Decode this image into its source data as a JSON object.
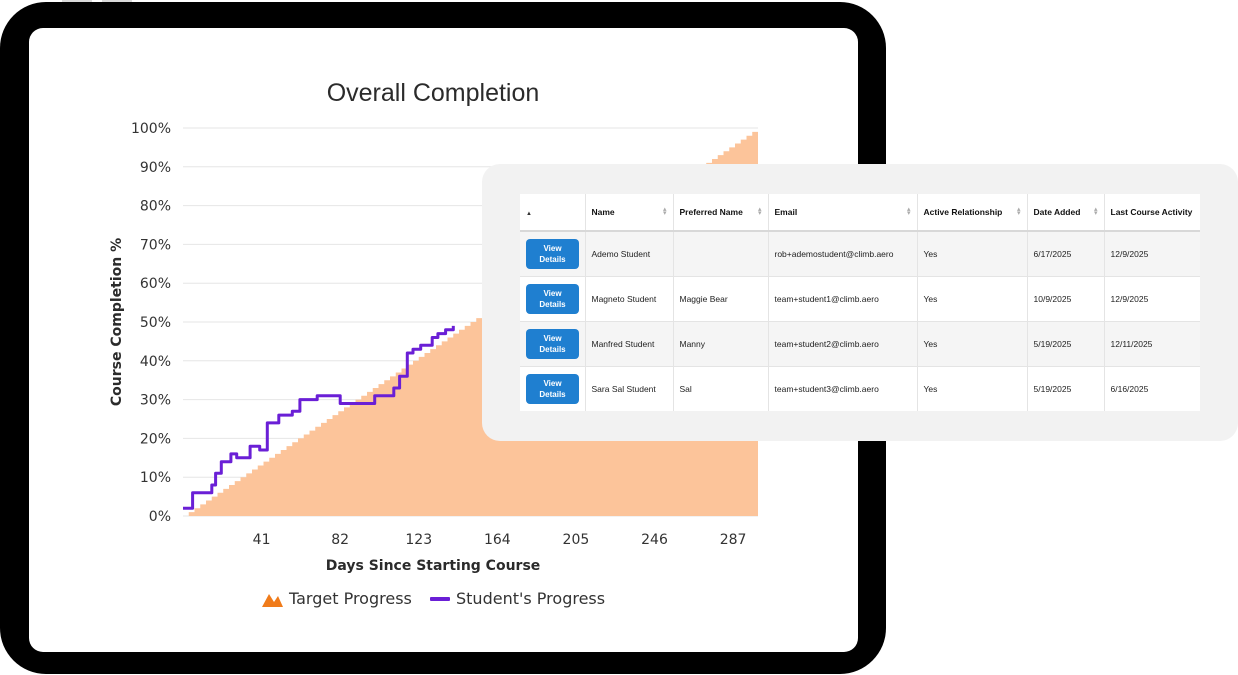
{
  "chart_data": {
    "type": "area",
    "title": "Overall Completion",
    "xlabel": "Days Since Starting Course",
    "ylabel": "Course Completion %",
    "xlim": [
      0,
      300
    ],
    "ylim": [
      0,
      100
    ],
    "x_ticks": [
      41,
      82,
      123,
      164,
      205,
      246,
      287
    ],
    "y_ticks": [
      "0%",
      "10%",
      "20%",
      "30%",
      "40%",
      "50%",
      "60%",
      "70%",
      "80%",
      "90%",
      "100%"
    ],
    "grid": true,
    "legend_position": "bottom",
    "series": [
      {
        "name": "Target Progress",
        "type": "area",
        "color": "#fcc49a",
        "x": [
          0,
          300
        ],
        "y": [
          0,
          100
        ]
      },
      {
        "name": "Student's Progress",
        "type": "line",
        "color": "#6a1fd6",
        "x": [
          0,
          5,
          5,
          15,
          15,
          17,
          17,
          20,
          20,
          25,
          25,
          28,
          28,
          35,
          35,
          40,
          40,
          44,
          44,
          50,
          50,
          53,
          53,
          57,
          57,
          61,
          61,
          70,
          70,
          72,
          72,
          78,
          78,
          82,
          82,
          100,
          100,
          110,
          110,
          113,
          113,
          117,
          117,
          120,
          120,
          124,
          124,
          130,
          130,
          133,
          133,
          137,
          137,
          141,
          141
        ],
        "y": [
          2,
          2,
          6,
          6,
          8,
          8,
          11,
          11,
          14,
          14,
          16,
          16,
          15,
          15,
          18,
          18,
          17,
          17,
          24,
          24,
          26,
          26,
          26,
          26,
          27,
          27,
          30,
          30,
          31,
          31,
          31,
          31,
          31,
          31,
          29,
          29,
          31,
          31,
          33,
          33,
          36,
          36,
          42,
          42,
          43,
          43,
          44,
          44,
          46,
          46,
          47,
          47,
          48,
          48,
          49
        ]
      }
    ]
  },
  "table": {
    "headers": [
      {
        "label": "▲"
      },
      {
        "label": "Name"
      },
      {
        "label": "Preferred Name"
      },
      {
        "label": "Email"
      },
      {
        "label": "Active Relationship"
      },
      {
        "label": "Date Added"
      },
      {
        "label": "Last Course Activity"
      }
    ],
    "rows": [
      {
        "button": "View Details",
        "name": "Ademo Student",
        "preferred": "",
        "email": "rob+ademostudent@climb.aero",
        "active": "Yes",
        "added": "6/17/2025",
        "last": "12/9/2025"
      },
      {
        "button": "View Details",
        "name": "Magneto Student",
        "preferred": "Maggie Bear",
        "email": "team+student1@climb.aero",
        "active": "Yes",
        "added": "10/9/2025",
        "last": "12/9/2025"
      },
      {
        "button": "View Details",
        "name": "Manfred Student",
        "preferred": "Manny",
        "email": "team+student2@climb.aero",
        "active": "Yes",
        "added": "5/19/2025",
        "last": "12/11/2025"
      },
      {
        "button": "View Details",
        "name": "Sara Sal Student",
        "preferred": "Sal",
        "email": "team+student3@climb.aero",
        "active": "Yes",
        "added": "5/19/2025",
        "last": "6/16/2025"
      }
    ]
  },
  "colors": {
    "accent_button": "#1f7fd0",
    "target_fill": "#fcc49a",
    "target_icon": "#f07b1a",
    "student_line": "#6a1fd6"
  },
  "icons": {
    "target_legend": "mountain-icon",
    "student_legend": "line-swatch-icon",
    "sort": "sort-arrows-icon"
  }
}
